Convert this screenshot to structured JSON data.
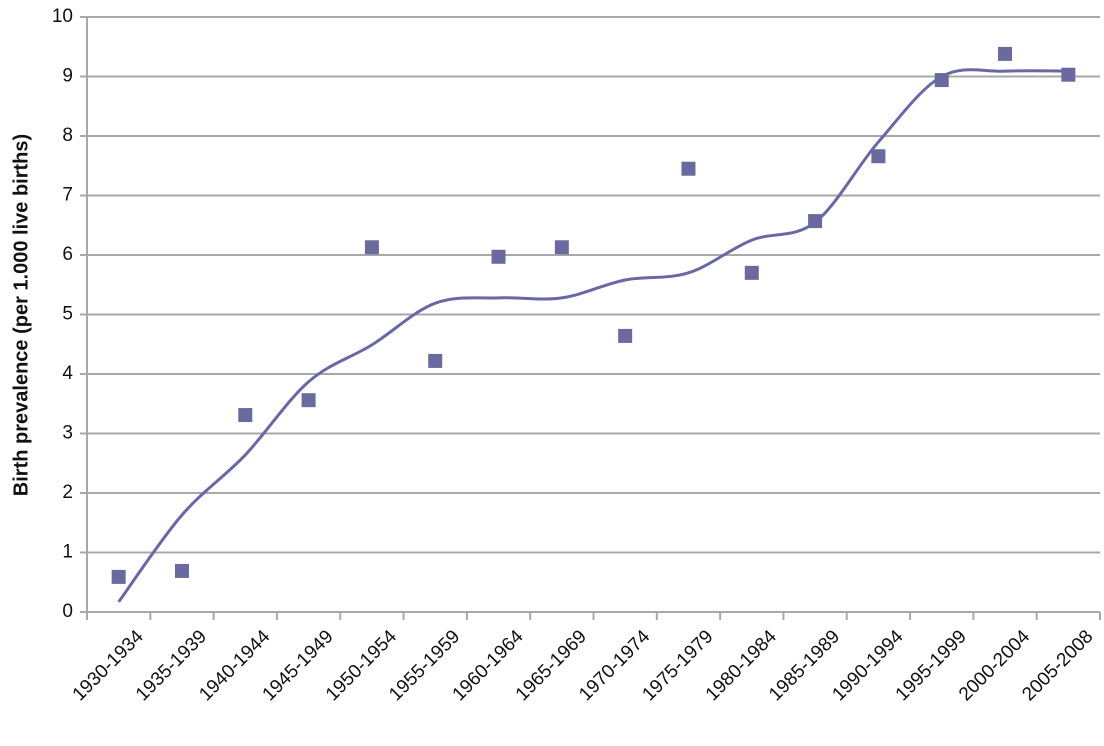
{
  "chart_data": {
    "type": "scatter",
    "y_label": "Birth prevalence (per 1.000 live births)",
    "categories": [
      "1930-1934",
      "1935-1939",
      "1940-1944",
      "1945-1949",
      "1950-1954",
      "1955-1959",
      "1960-1964",
      "1965-1969",
      "1970-1974",
      "1975-1979",
      "1980-1984",
      "1985-1989",
      "1990-1994",
      "1995-1999",
      "2000-2004",
      "2005-2008"
    ],
    "series": [
      {
        "type": "scatter",
        "color": "#6a6a9e",
        "values": [
          0.59,
          0.69,
          3.31,
          3.56,
          6.13,
          4.22,
          5.97,
          6.13,
          4.64,
          7.45,
          5.7,
          6.57,
          7.66,
          8.94,
          9.38,
          9.03
        ]
      },
      {
        "type": "line",
        "color": "#6868a6",
        "values": [
          0.17,
          1.63,
          2.64,
          3.87,
          4.49,
          5.19,
          5.28,
          5.28,
          5.58,
          5.7,
          6.25,
          6.55,
          7.9,
          9.0,
          9.09,
          9.09
        ]
      }
    ],
    "ylim": [
      0,
      10
    ],
    "yticks": [
      0,
      1,
      2,
      3,
      4,
      5,
      6,
      7,
      8,
      9,
      10
    ],
    "grid": true
  }
}
